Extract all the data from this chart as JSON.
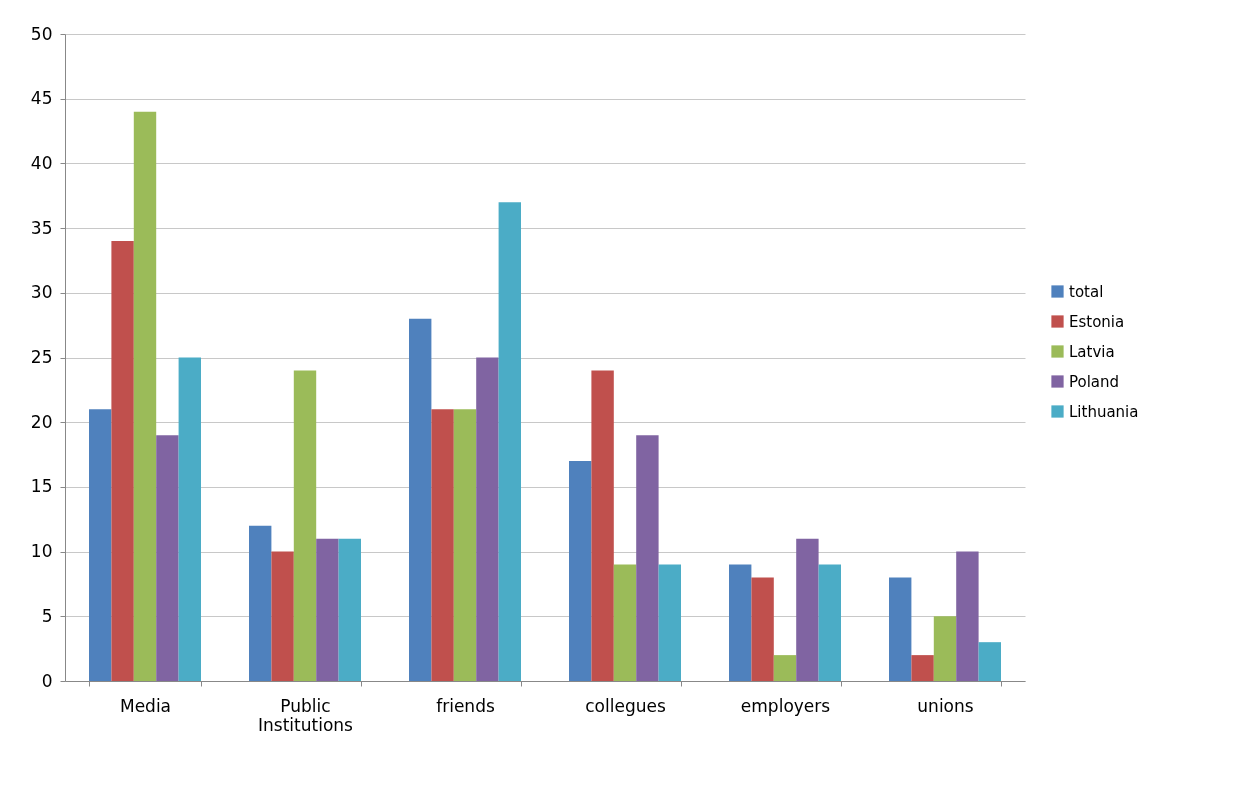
{
  "chart_data": {
    "type": "bar",
    "categories": [
      "Media",
      "Public Institutions",
      "friends",
      "collegues",
      "employers",
      "unions"
    ],
    "series": [
      {
        "name": "total",
        "color": "#4f81bd",
        "values": [
          21,
          12,
          28,
          17,
          9,
          8
        ]
      },
      {
        "name": "Estonia",
        "color": "#c0504d",
        "values": [
          34,
          10,
          21,
          24,
          8,
          2
        ]
      },
      {
        "name": "Latvia",
        "color": "#9bbb59",
        "values": [
          44,
          24,
          21,
          9,
          2,
          5
        ]
      },
      {
        "name": "Poland",
        "color": "#8064a2",
        "values": [
          19,
          11,
          25,
          19,
          11,
          10
        ]
      },
      {
        "name": "Lithuania",
        "color": "#4bacc6",
        "values": [
          25,
          11,
          37,
          9,
          9,
          3
        ]
      }
    ],
    "ylim": [
      0,
      50
    ],
    "yticks": [
      0,
      5,
      10,
      15,
      20,
      25,
      30,
      35,
      40,
      45,
      50
    ],
    "grid": "y",
    "legend": "right"
  }
}
